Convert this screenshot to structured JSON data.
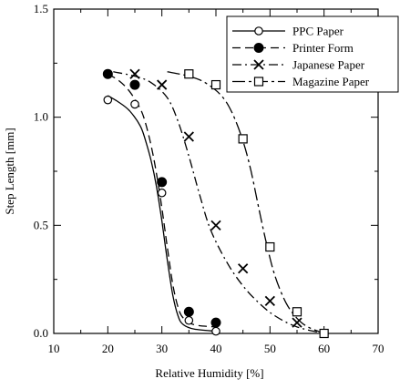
{
  "chart_data": {
    "type": "scatter",
    "title": "",
    "xlabel": "Relative Humidity   [%]",
    "ylabel": "Step Length   [mm]",
    "xlim": [
      10,
      70
    ],
    "ylim": [
      0.0,
      1.5
    ],
    "x_ticks": [
      10,
      20,
      30,
      40,
      50,
      60,
      70
    ],
    "y_ticks": [
      0.0,
      0.5,
      1.0,
      1.5
    ],
    "x_tick_labels": [
      "10",
      "20",
      "30",
      "40",
      "50",
      "60",
      "70"
    ],
    "y_tick_labels": [
      "0.0",
      "0.5",
      "1.0",
      "1.5"
    ],
    "grid": false,
    "legend_position": "top-right",
    "series": [
      {
        "name": "PPC Paper",
        "marker": "open-circle",
        "line_style": "solid",
        "points": [
          {
            "x": 20,
            "y": 1.08
          },
          {
            "x": 25,
            "y": 1.06
          },
          {
            "x": 30,
            "y": 0.65
          },
          {
            "x": 35,
            "y": 0.06
          },
          {
            "x": 40,
            "y": 0.01
          }
        ],
        "fit": [
          [
            20,
            1.1
          ],
          [
            22,
            1.07
          ],
          [
            24,
            1.03
          ],
          [
            26,
            0.96
          ],
          [
            27,
            0.89
          ],
          [
            28,
            0.8
          ],
          [
            29,
            0.68
          ],
          [
            30,
            0.52
          ],
          [
            31,
            0.34
          ],
          [
            32,
            0.18
          ],
          [
            33,
            0.08
          ],
          [
            34,
            0.04
          ],
          [
            36,
            0.02
          ],
          [
            40,
            0.01
          ]
        ]
      },
      {
        "name": "Printer Form",
        "marker": "filled-circle",
        "line_style": "dashed",
        "points": [
          {
            "x": 20,
            "y": 1.2
          },
          {
            "x": 25,
            "y": 1.15
          },
          {
            "x": 30,
            "y": 0.7
          },
          {
            "x": 35,
            "y": 0.1
          },
          {
            "x": 40,
            "y": 0.05
          }
        ],
        "fit": [
          [
            20,
            1.2
          ],
          [
            22,
            1.17
          ],
          [
            24,
            1.12
          ],
          [
            26,
            1.04
          ],
          [
            27,
            0.97
          ],
          [
            28,
            0.87
          ],
          [
            29,
            0.74
          ],
          [
            30,
            0.58
          ],
          [
            31,
            0.4
          ],
          [
            32,
            0.23
          ],
          [
            33,
            0.12
          ],
          [
            34,
            0.07
          ],
          [
            36,
            0.04
          ],
          [
            40,
            0.03
          ]
        ]
      },
      {
        "name": "Japanese Paper",
        "marker": "x",
        "line_style": "dash-dot",
        "points": [
          {
            "x": 25,
            "y": 1.2
          },
          {
            "x": 30,
            "y": 1.15
          },
          {
            "x": 35,
            "y": 0.91
          },
          {
            "x": 40,
            "y": 0.5
          },
          {
            "x": 45,
            "y": 0.3
          },
          {
            "x": 50,
            "y": 0.15
          },
          {
            "x": 55,
            "y": 0.05
          }
        ],
        "fit": [
          [
            21,
            1.21
          ],
          [
            25,
            1.19
          ],
          [
            28,
            1.16
          ],
          [
            31,
            1.09
          ],
          [
            33,
            0.98
          ],
          [
            35,
            0.82
          ],
          [
            37,
            0.64
          ],
          [
            39,
            0.48
          ],
          [
            42,
            0.33
          ],
          [
            45,
            0.22
          ],
          [
            48,
            0.14
          ],
          [
            51,
            0.08
          ],
          [
            55,
            0.03
          ],
          [
            60,
            0.0
          ]
        ]
      },
      {
        "name": "Magazine Paper",
        "marker": "open-square",
        "line_style": "long-dash-dot",
        "points": [
          {
            "x": 35,
            "y": 1.2
          },
          {
            "x": 40,
            "y": 1.15
          },
          {
            "x": 45,
            "y": 0.9
          },
          {
            "x": 50,
            "y": 0.4
          },
          {
            "x": 55,
            "y": 0.1
          },
          {
            "x": 60,
            "y": 0.0
          }
        ],
        "fit": [
          [
            31,
            1.21
          ],
          [
            35,
            1.19
          ],
          [
            38,
            1.16
          ],
          [
            41,
            1.1
          ],
          [
            43,
            1.02
          ],
          [
            45,
            0.89
          ],
          [
            46.5,
            0.75
          ],
          [
            48,
            0.57
          ],
          [
            49.5,
            0.4
          ],
          [
            51,
            0.26
          ],
          [
            53,
            0.14
          ],
          [
            55,
            0.07
          ],
          [
            57,
            0.03
          ],
          [
            60,
            0.0
          ]
        ]
      }
    ]
  }
}
